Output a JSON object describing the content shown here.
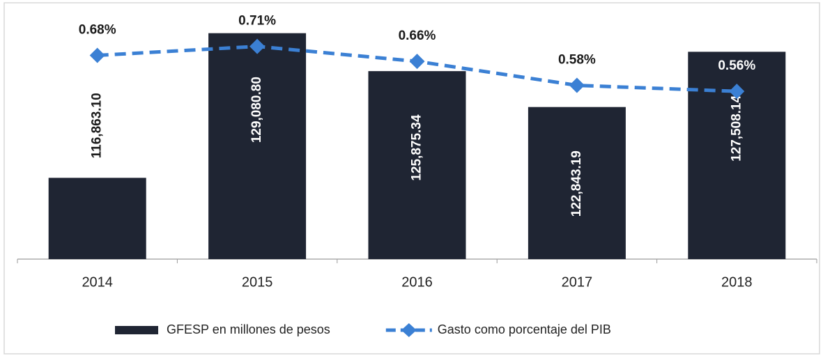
{
  "chart_data": {
    "type": "bar_line",
    "categories": [
      "2014",
      "2015",
      "2016",
      "2017",
      "2018"
    ],
    "series": [
      {
        "name": "GFESP en millones de pesos",
        "type": "bar",
        "color": "#1f2533",
        "values": [
          116863.1,
          129080.8,
          125875.34,
          122843.19,
          127508.14
        ],
        "value_labels": [
          "116,863.10",
          "129,080.80",
          "125,875.34",
          "122,843.19",
          "127,508.14"
        ]
      },
      {
        "name": "Gasto como porcentaje del PIB",
        "type": "line",
        "axis": "y2",
        "color": "#3b80d4",
        "values": [
          0.68,
          0.71,
          0.66,
          0.58,
          0.56
        ],
        "value_labels": [
          "0.68%",
          "0.71%",
          "0.66%",
          "0.58%",
          "0.56%"
        ]
      }
    ],
    "ylim": [
      110000,
      131000
    ],
    "y2lim": [
      0,
      0.83
    ],
    "legend": "bottom"
  }
}
